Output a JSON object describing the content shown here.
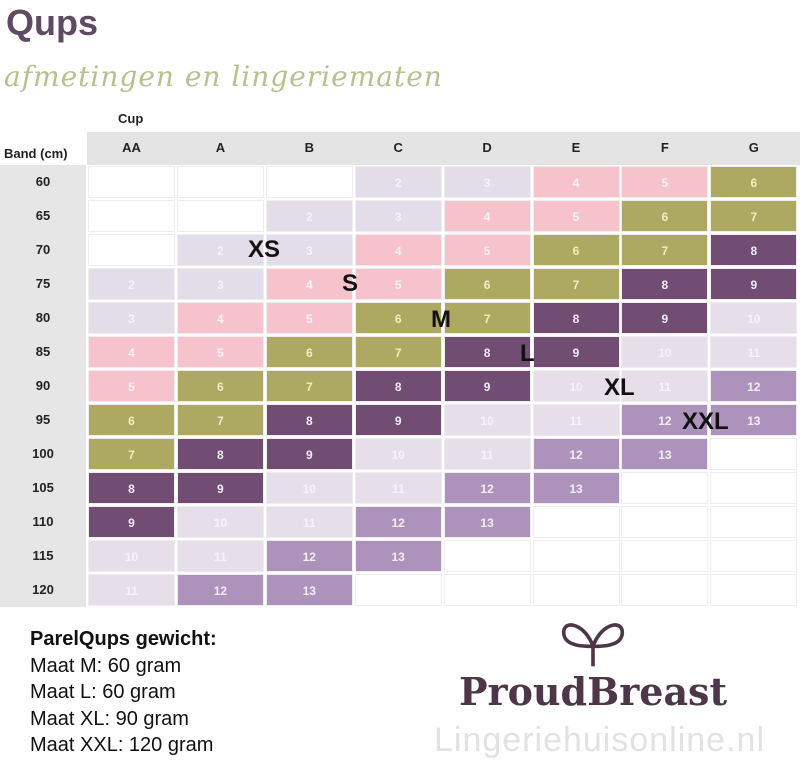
{
  "title": "Qups",
  "subtitle": "afmetingen en lingeriematen",
  "table": {
    "cup_label": "Cup",
    "band_label": "Band (cm)",
    "cups": [
      "AA",
      "A",
      "B",
      "C",
      "D",
      "E",
      "F",
      "G"
    ],
    "bands": [
      "60",
      "65",
      "70",
      "75",
      "80",
      "85",
      "90",
      "95",
      "100",
      "105",
      "110",
      "115",
      "120"
    ],
    "values": [
      [
        "",
        "",
        "",
        "2",
        "3",
        "4",
        "5",
        "6"
      ],
      [
        "",
        "",
        "2",
        "3",
        "4",
        "5",
        "6",
        "7"
      ],
      [
        "",
        "2",
        "3",
        "4",
        "5",
        "6",
        "7",
        "8"
      ],
      [
        "2",
        "3",
        "4",
        "5",
        "6",
        "7",
        "8",
        "9"
      ],
      [
        "3",
        "4",
        "5",
        "6",
        "7",
        "8",
        "9",
        "10"
      ],
      [
        "4",
        "5",
        "6",
        "7",
        "8",
        "9",
        "10",
        "11"
      ],
      [
        "5",
        "6",
        "7",
        "8",
        "9",
        "10",
        "11",
        "12"
      ],
      [
        "6",
        "7",
        "8",
        "9",
        "10",
        "11",
        "12",
        "13"
      ],
      [
        "7",
        "8",
        "9",
        "10",
        "11",
        "12",
        "13",
        ""
      ],
      [
        "8",
        "9",
        "10",
        "11",
        "12",
        "13",
        "",
        ""
      ],
      [
        "9",
        "10",
        "11",
        "12",
        "13",
        "",
        "",
        ""
      ],
      [
        "10",
        "11",
        "12",
        "13",
        "",
        "",
        "",
        ""
      ],
      [
        "11",
        "12",
        "13",
        "",
        "",
        "",
        "",
        ""
      ]
    ],
    "colors": {
      "2": "#e3dce9",
      "3": "#e3dce9",
      "4": "#f6c3cc",
      "5": "#f6c3cc",
      "6": "#aea962",
      "7": "#aea962",
      "8": "#714c73",
      "9": "#714c73",
      "10": "#e6dfea",
      "11": "#e6dfea",
      "12": "#ad92bb",
      "13": "#ad92bb"
    },
    "size_labels": [
      "XS",
      "S",
      "M",
      "L",
      "XL",
      "XXL"
    ]
  },
  "weights": {
    "heading": "ParelQups gewicht:",
    "items": [
      "Maat M: 60 gram",
      "Maat L: 60 gram",
      "Maat XL: 90 gram",
      "Maat XXL: 120 gram"
    ]
  },
  "logo": {
    "brand": "ProudBreast",
    "icon": "heart-ribbon-icon"
  },
  "watermark": "Lingeriehuisonline.nl"
}
